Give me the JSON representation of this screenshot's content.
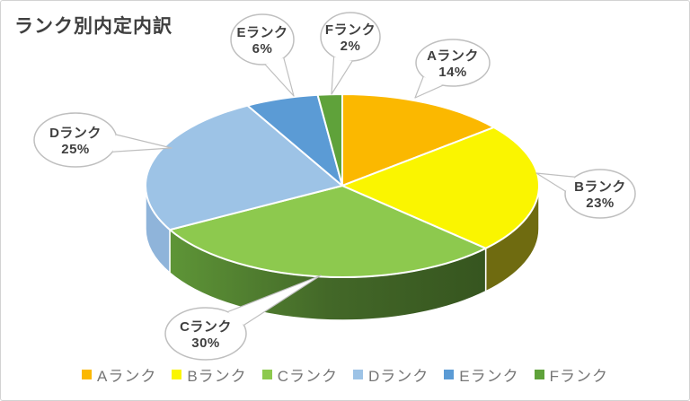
{
  "title": "ランク別内定内訳",
  "chart_data": {
    "type": "pie",
    "style": "3d",
    "title": "ランク別内定内訳",
    "categories": [
      "Aランク",
      "Bランク",
      "Cランク",
      "Dランク",
      "Eランク",
      "Fランク"
    ],
    "values": [
      14,
      23,
      30,
      25,
      6,
      2
    ],
    "unit": "%",
    "direction": "clockwise",
    "start_angle_deg": 0,
    "legend_position": "bottom",
    "colors": [
      "#FBB800",
      "#FAF500",
      "#8DC94E",
      "#9DC3E6",
      "#5B9BD5",
      "#5FA23A"
    ],
    "side_colors": [
      "#9C7400",
      "#6F6B10",
      [
        "#5E9537",
        "#436828",
        "#36551F"
      ],
      "#8FB4DA",
      "#3E77AC",
      "#3F7224"
    ],
    "callout_border_color": "#BFBFBF",
    "text_color": "#3F3F3F"
  },
  "callouts": [
    {
      "label": "Aランク",
      "percent": "14%"
    },
    {
      "label": "Bランク",
      "percent": "23%"
    },
    {
      "label": "Cランク",
      "percent": "30%"
    },
    {
      "label": "Dランク",
      "percent": "25%"
    },
    {
      "label": "Eランク",
      "percent": "6%"
    },
    {
      "label": "Fランク",
      "percent": "2%"
    }
  ]
}
